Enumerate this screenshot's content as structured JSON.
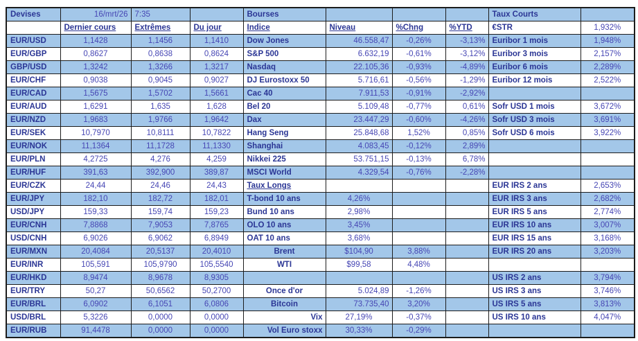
{
  "header": {
    "devises_title": "Devises",
    "date": "16/mrt/26",
    "time": "7:35",
    "bourses_title": "Bourses",
    "taux_courts_title": "Taux Courts",
    "col_headers": {
      "dernier_cours": "Dernier cours",
      "extremes": "Extrêmes",
      "du_jour": "Du jour",
      "indice": "Indice",
      "niveau": "Niveau",
      "chng": "%Chng",
      "ytd": "%YTD",
      "estr_label": "€STR",
      "estr_value": "1,932%"
    }
  },
  "colors": {
    "stripe_blue": "#a3c7e9",
    "label_navy": "#2b3695",
    "value_indigo": "#4646b4",
    "border": "#1c1c1c"
  },
  "rows": [
    {
      "pair": "EUR/USD",
      "last": "1,1428",
      "extremes": "1,1456",
      "day": "1,1410",
      "mid": {
        "label": "Dow Jones",
        "niveau": "46.558,47",
        "chng": "-0,26%",
        "ytd": "-3,13%",
        "label_align": "left",
        "niveau_align": "right"
      },
      "rate": {
        "label": "Euribor 1 mois",
        "value": "1,948%"
      }
    },
    {
      "pair": "EUR/GBP",
      "last": "0,8627",
      "extremes": "0,8638",
      "day": "0,8624",
      "mid": {
        "label": "S&P 500",
        "niveau": "6.632,19",
        "chng": "-0,61%",
        "ytd": "-3,12%",
        "label_align": "left",
        "niveau_align": "right"
      },
      "rate": {
        "label": "Euribor 3 mois",
        "value": "2,157%"
      }
    },
    {
      "pair": "GBP/USD",
      "last": "1,3242",
      "extremes": "1,3266",
      "day": "1,3217",
      "mid": {
        "label": "Nasdaq",
        "niveau": "22.105,36",
        "chng": "-0,93%",
        "ytd": "-4,89%",
        "label_align": "left",
        "niveau_align": "right"
      },
      "rate": {
        "label": "Euribor 6 mois",
        "value": "2,289%"
      }
    },
    {
      "pair": "EUR/CHF",
      "last": "0,9038",
      "extremes": "0,9045",
      "day": "0,9027",
      "mid": {
        "label": "DJ Eurostoxx 50",
        "niveau": "5.716,61",
        "chng": "-0,56%",
        "ytd": "-1,29%",
        "label_align": "left",
        "niveau_align": "right"
      },
      "rate": {
        "label": "Euribor 12 mois",
        "value": "2,522%"
      }
    },
    {
      "pair": "EUR/CAD",
      "last": "1,5675",
      "extremes": "1,5702",
      "day": "1,5661",
      "mid": {
        "label": "Cac 40",
        "niveau": "7.911,53",
        "chng": "-0,91%",
        "ytd": "-2,92%",
        "label_align": "left",
        "niveau_align": "right"
      },
      "rate": null
    },
    {
      "pair": "EUR/AUD",
      "last": "1,6291",
      "extremes": "1,635",
      "day": "1,628",
      "mid": {
        "label": "Bel 20",
        "niveau": "5.109,48",
        "chng": "-0,77%",
        "ytd": "0,61%",
        "label_align": "left",
        "niveau_align": "right"
      },
      "rate": {
        "label": "Sofr USD 1 mois",
        "value": "3,672%"
      }
    },
    {
      "pair": "EUR/NZD",
      "last": "1,9683",
      "extremes": "1,9766",
      "day": "1,9642",
      "mid": {
        "label": "Dax",
        "niveau": "23.447,29",
        "chng": "-0,60%",
        "ytd": "-4,26%",
        "label_align": "left",
        "niveau_align": "right"
      },
      "rate": {
        "label": "Sofr USD 3 mois",
        "value": "3,691%"
      }
    },
    {
      "pair": "EUR/SEK",
      "last": "10,7970",
      "extremes": "10,8111",
      "day": "10,7822",
      "mid": {
        "label": "Hang Seng",
        "niveau": "25.848,68",
        "chng": "1,52%",
        "ytd": "0,85%",
        "label_align": "left",
        "niveau_align": "right"
      },
      "rate": {
        "label": "Sofr USD 6 mois",
        "value": "3,922%"
      }
    },
    {
      "pair": "EUR/NOK",
      "last": "11,1364",
      "extremes": "11,1728",
      "day": "11,1330",
      "mid": {
        "label": "Shanghai",
        "niveau": "4.083,45",
        "chng": "-0,12%",
        "ytd": "2,89%",
        "label_align": "left",
        "niveau_align": "right"
      },
      "rate": null
    },
    {
      "pair": "EUR/PLN",
      "last": "4,2725",
      "extremes": "4,276",
      "day": "4,259",
      "mid": {
        "label": "Nikkei 225",
        "niveau": "53.751,15",
        "chng": "-0,13%",
        "ytd": "6,78%",
        "label_align": "left",
        "niveau_align": "right"
      },
      "rate": null
    },
    {
      "pair": "EUR/HUF",
      "last": "391,63",
      "extremes": "392,900",
      "day": "389,87",
      "mid": {
        "label": "MSCI World",
        "niveau": "4.329,54",
        "chng": "-0,76%",
        "ytd": "-2,28%",
        "label_align": "left",
        "niveau_align": "right"
      },
      "rate": null
    },
    {
      "pair": "EUR/CZK",
      "last": "24,44",
      "extremes": "24,46",
      "day": "24,43",
      "mid": {
        "label": "Taux Longs",
        "niveau": "",
        "chng": "",
        "ytd": "",
        "label_align": "left",
        "niveau_align": "right",
        "underline": true
      },
      "rate": {
        "label": "EUR IRS 2 ans",
        "value": "2,653%"
      }
    },
    {
      "pair": "EUR/JPY",
      "last": "182,10",
      "extremes": "182,72",
      "day": "182,01",
      "mid": {
        "label": "T-bond 10 ans",
        "niveau": "4,26%",
        "chng": "",
        "ytd": "",
        "label_align": "left",
        "niveau_align": "center"
      },
      "rate": {
        "label": "EUR IRS 3 ans",
        "value": "2,682%"
      }
    },
    {
      "pair": "USD/JPY",
      "last": "159,33",
      "extremes": "159,74",
      "day": "159,23",
      "mid": {
        "label": "Bund 10 ans",
        "niveau": "2,98%",
        "chng": "",
        "ytd": "",
        "label_align": "left",
        "niveau_align": "center"
      },
      "rate": {
        "label": "EUR IRS 5 ans",
        "value": "2,774%"
      }
    },
    {
      "pair": "EUR/CNH",
      "last": "7,8868",
      "extremes": "7,9053",
      "day": "7,8765",
      "mid": {
        "label": "OLO 10 ans",
        "niveau": "3,45%",
        "chng": "",
        "ytd": "",
        "label_align": "left",
        "niveau_align": "center"
      },
      "rate": {
        "label": "EUR IRS 10 ans",
        "value": "3,007%"
      }
    },
    {
      "pair": "USD/CNH",
      "last": "6,9026",
      "extremes": "6,9062",
      "day": "6,8949",
      "mid": {
        "label": "OAT 10 ans",
        "niveau": "3,68%",
        "chng": "",
        "ytd": "",
        "label_align": "left",
        "niveau_align": "center"
      },
      "rate": {
        "label": "EUR IRS 15 ans",
        "value": "3,168%"
      }
    },
    {
      "pair": "EUR/MXN",
      "last": "20,4084",
      "extremes": "20,5137",
      "day": "20,4010",
      "mid": {
        "label": "Brent",
        "niveau": "$104,90",
        "chng": "3,88%",
        "ytd": "",
        "label_align": "center",
        "niveau_align": "center"
      },
      "rate": {
        "label": "EUR IRS 20 ans",
        "value": "3,203%"
      }
    },
    {
      "pair": "EUR/INR",
      "last": "105,591",
      "extremes": "105,9790",
      "day": "105,5540",
      "mid": {
        "label": "WTI",
        "niveau": "$99,58",
        "chng": "4,48%",
        "ytd": "",
        "label_align": "center",
        "niveau_align": "center"
      },
      "rate": null
    },
    {
      "pair": "EUR/HKD",
      "last": "8,9474",
      "extremes": "8,9678",
      "day": "8,9305",
      "mid": null,
      "rate": {
        "label": "US IRS 2 ans",
        "value": "3,794%"
      }
    },
    {
      "pair": "EUR/TRY",
      "last": "50,27",
      "extremes": "50,6562",
      "day": "50,2700",
      "mid": {
        "label": "Once d'or",
        "niveau": "5.024,89",
        "chng": "-1,26%",
        "ytd": "",
        "label_align": "center",
        "niveau_align": "right"
      },
      "rate": {
        "label": "US IRS 3 ans",
        "value": "3,746%"
      }
    },
    {
      "pair": "EUR/BRL",
      "last": "6,0902",
      "extremes": "6,1051",
      "day": "6,0806",
      "mid": {
        "label": "Bitcoin",
        "niveau": "73.735,40",
        "chng": "3,20%",
        "ytd": "",
        "label_align": "center",
        "niveau_align": "right"
      },
      "rate": {
        "label": "US IRS 5 ans",
        "value": "3,813%"
      }
    },
    {
      "pair": "USD/BRL",
      "last": "5,3226",
      "extremes": "0,0000",
      "day": "0,0000",
      "mid": {
        "label": "Vix",
        "niveau": "27,19%",
        "chng": "-0,37%",
        "ytd": "",
        "label_align": "right",
        "niveau_align": "center"
      },
      "rate": {
        "label": "US IRS 10 ans",
        "value": "4,047%"
      }
    },
    {
      "pair": "EUR/RUB",
      "last": "91,4478",
      "extremes": "0,0000",
      "day": "0,0000",
      "mid": {
        "label": "Vol Euro stoxx",
        "niveau": "30,33%",
        "chng": "-0,29%",
        "ytd": "",
        "label_align": "right",
        "niveau_align": "center"
      },
      "rate": null
    }
  ]
}
